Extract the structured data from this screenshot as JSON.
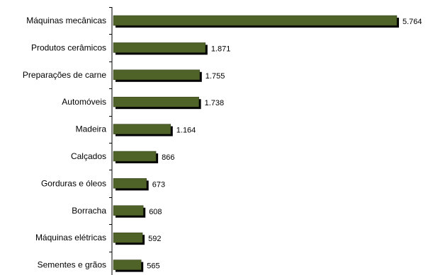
{
  "chart_data": {
    "type": "bar",
    "orientation": "horizontal",
    "categories": [
      "Máquinas mecânicas",
      "Produtos cerâmicos",
      "Preparações de carne",
      "Automóveis",
      "Madeira",
      "Calçados",
      "Gorduras e óleos",
      "Borracha",
      "Máquinas elétricas",
      "Sementes e grãos"
    ],
    "values": [
      5764,
      1871,
      1755,
      1738,
      1164,
      866,
      673,
      608,
      592,
      565
    ],
    "value_labels": [
      "5.764",
      "1.871",
      "1.755",
      "1.738",
      "1.164",
      "866",
      "673",
      "608",
      "592",
      "565"
    ],
    "title": "",
    "xlabel": "",
    "ylabel": "",
    "xlim": [
      0,
      5764
    ],
    "grid": false,
    "legend": "none",
    "colors": {
      "bar_fill": "#4f6228",
      "bar_shadow": "#000000",
      "axis": "#000000"
    }
  }
}
